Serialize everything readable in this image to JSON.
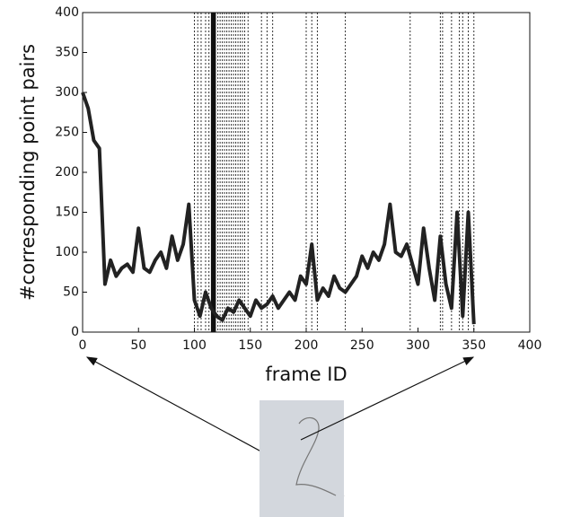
{
  "chart_data": {
    "type": "line",
    "xlabel": "frame ID",
    "ylabel": "#corresponding point pairs",
    "x": [
      0,
      5,
      10,
      15,
      20,
      25,
      30,
      35,
      40,
      45,
      50,
      55,
      60,
      65,
      70,
      75,
      80,
      85,
      90,
      95,
      100,
      105,
      110,
      115,
      120,
      125,
      130,
      135,
      140,
      145,
      150,
      155,
      160,
      165,
      170,
      175,
      180,
      185,
      190,
      195,
      200,
      205,
      210,
      215,
      220,
      225,
      230,
      235,
      240,
      245,
      250,
      255,
      260,
      265,
      270,
      275,
      280,
      285,
      290,
      295,
      300,
      305,
      310,
      315,
      320,
      325,
      330,
      335,
      340,
      345,
      350
    ],
    "values": [
      300,
      280,
      240,
      230,
      60,
      90,
      70,
      80,
      85,
      75,
      130,
      80,
      75,
      90,
      100,
      80,
      120,
      90,
      110,
      160,
      40,
      20,
      50,
      30,
      20,
      15,
      30,
      25,
      40,
      30,
      20,
      40,
      30,
      35,
      45,
      30,
      40,
      50,
      40,
      70,
      60,
      110,
      40,
      55,
      45,
      70,
      55,
      50,
      60,
      70,
      95,
      80,
      100,
      90,
      110,
      160,
      100,
      95,
      110,
      85,
      60,
      130,
      80,
      40,
      120,
      60,
      30,
      150,
      20,
      150,
      10
    ],
    "color": "#222222",
    "markers": [
      100,
      103,
      106,
      110,
      113,
      121,
      123,
      125,
      127,
      129,
      131,
      133,
      135,
      137,
      139,
      141,
      143,
      145,
      148,
      160,
      165,
      170,
      200,
      205,
      210,
      235,
      293,
      320,
      322,
      330,
      337,
      340,
      345,
      350
    ],
    "solid_markers": [
      116,
      118
    ],
    "xlim": [
      0,
      400
    ],
    "ylim": [
      0,
      400
    ],
    "xticks": [
      0,
      50,
      100,
      150,
      200,
      250,
      300,
      350,
      400
    ],
    "yticks": [
      0,
      50,
      100,
      150,
      200,
      250,
      300,
      350,
      400
    ]
  }
}
